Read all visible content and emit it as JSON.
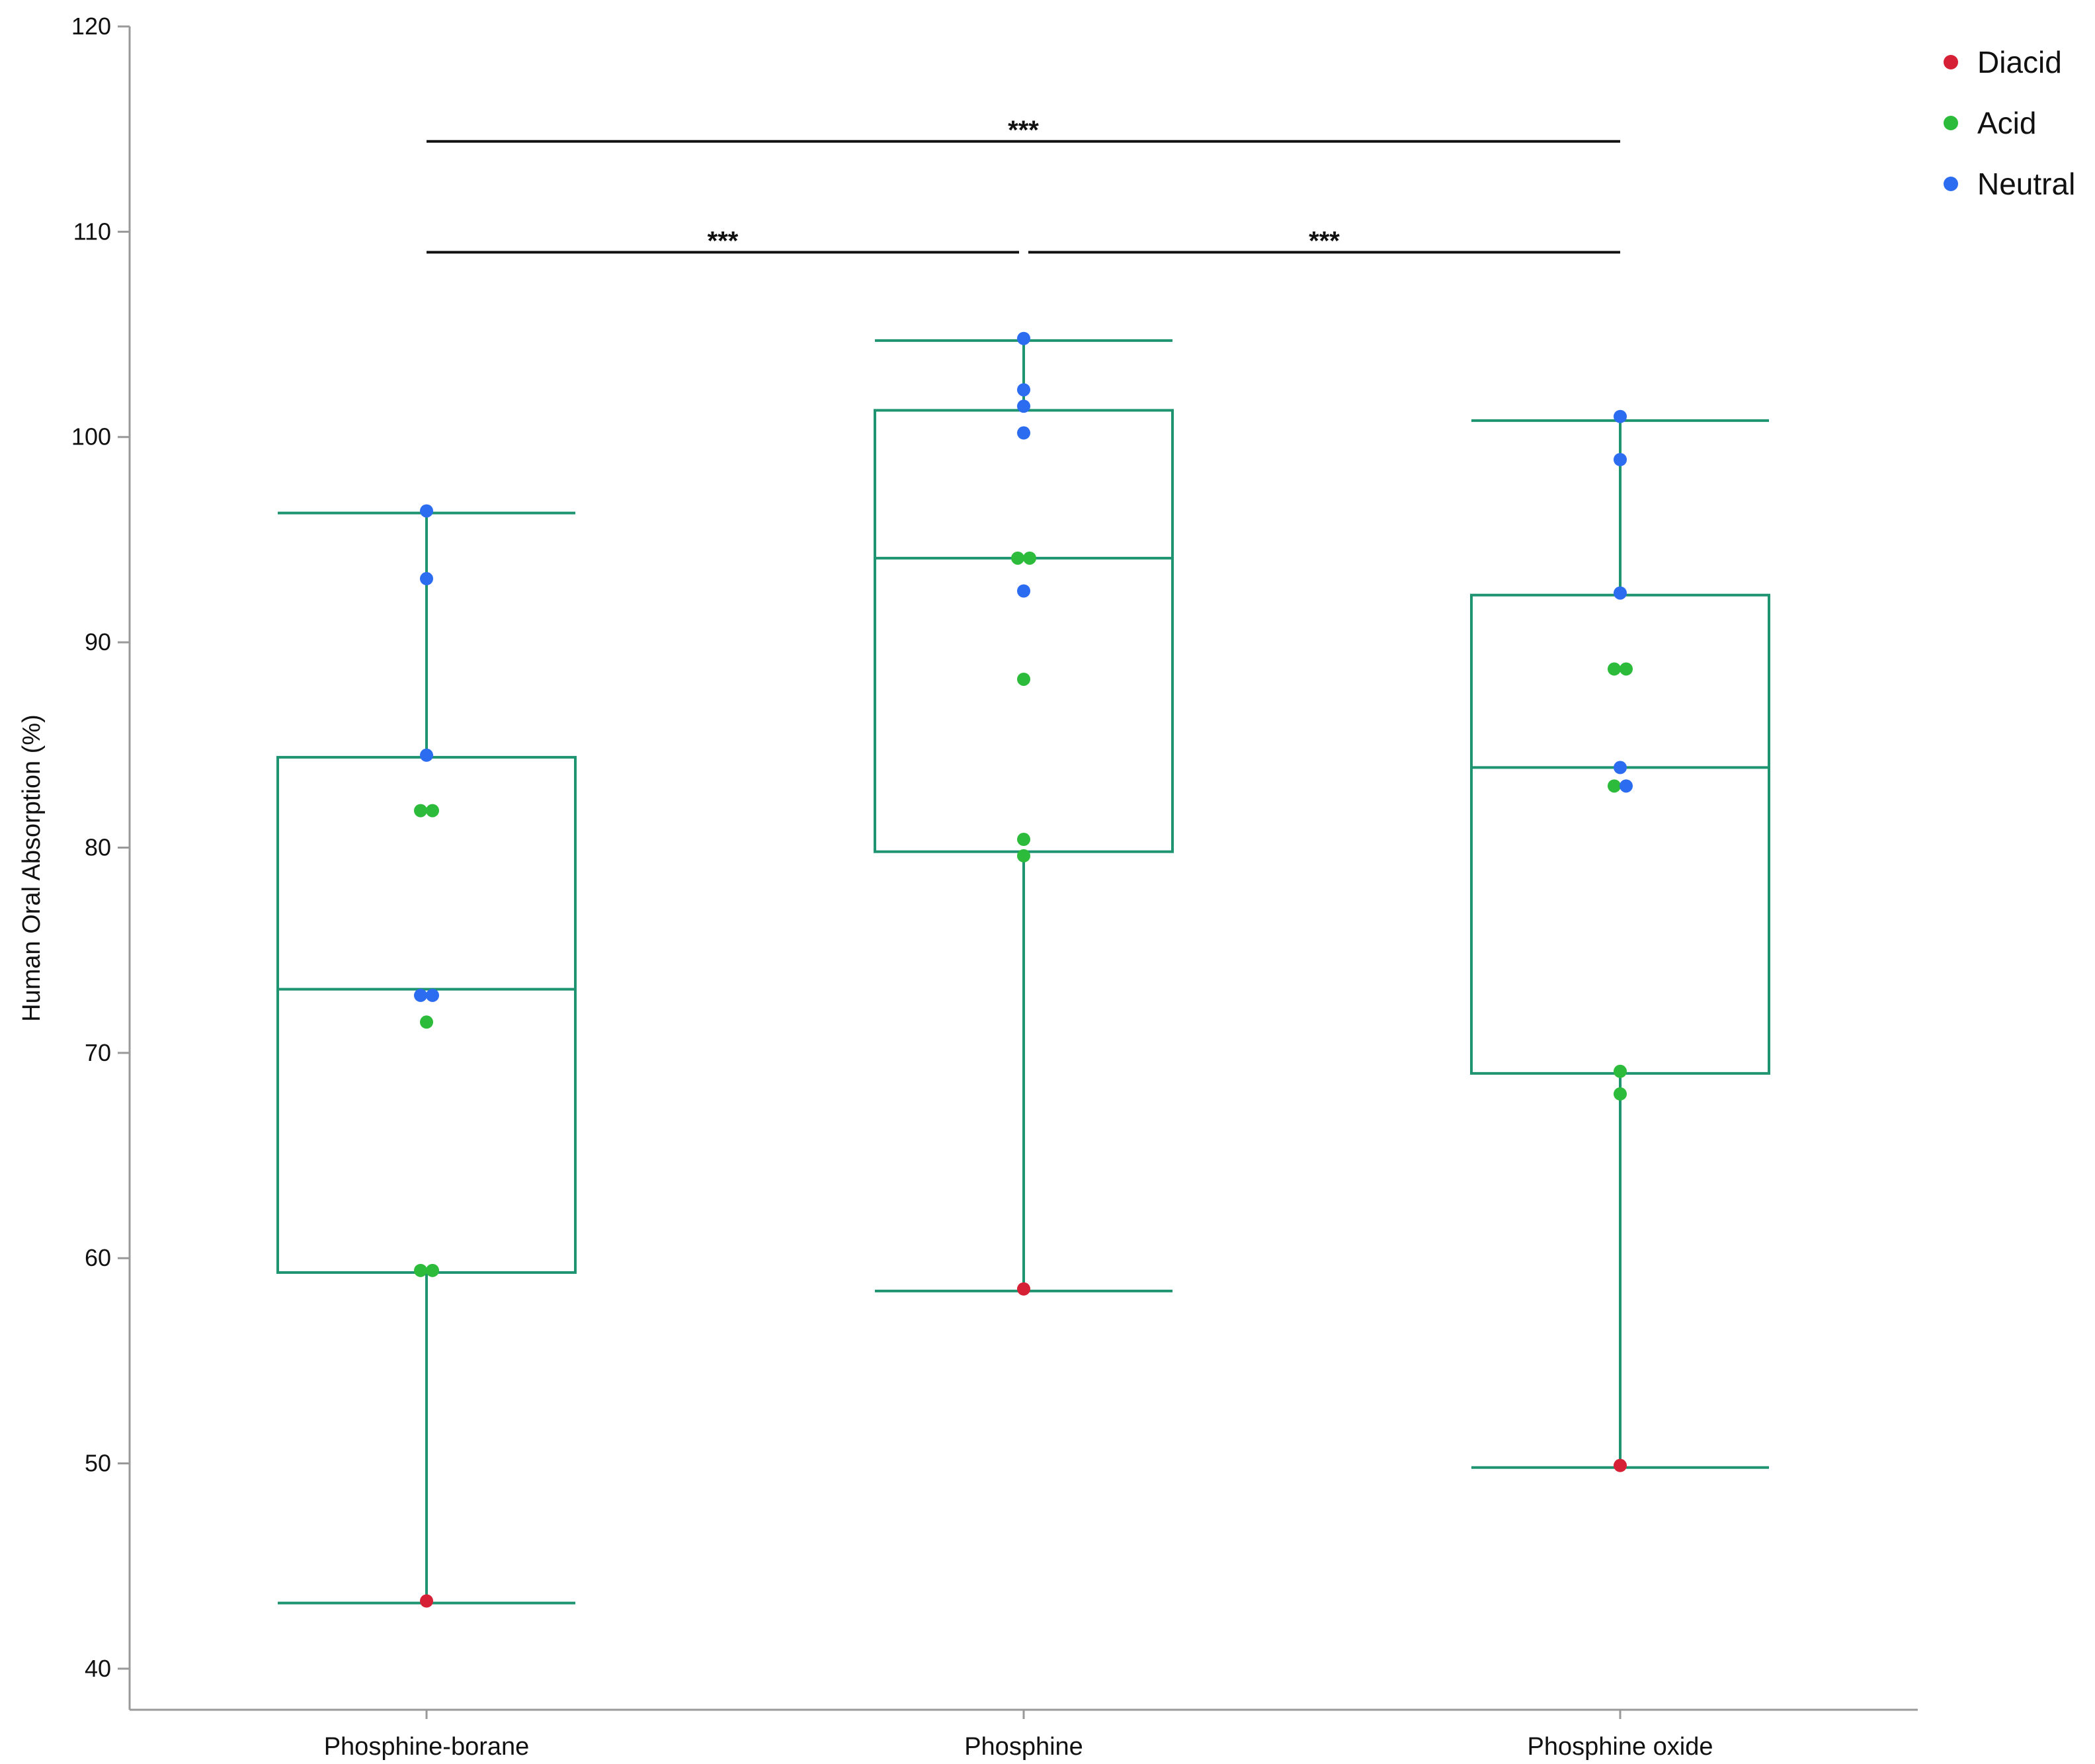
{
  "chart_data": {
    "type": "box",
    "ylabel": "Human Oral Absorption (%)",
    "xlabel": "",
    "ylim": [
      38,
      120
    ],
    "yticks": [
      40,
      50,
      60,
      70,
      80,
      90,
      100,
      110,
      120
    ],
    "categories": [
      "Phosphine-borane",
      "Phosphine",
      "Phosphine oxide"
    ],
    "legend": {
      "position": "top-right",
      "entries": [
        {
          "name": "Diacid",
          "color": "#d62035"
        },
        {
          "name": "Acid",
          "color": "#2dbb3c"
        },
        {
          "name": "Neutral",
          "color": "#2c6cf0"
        }
      ]
    },
    "box_color": "#1e9470",
    "boxes": [
      {
        "category": "Phosphine-borane",
        "whisker_low": 43.2,
        "q1": 59.3,
        "median": 73.1,
        "q3": 84.4,
        "whisker_high": 96.3
      },
      {
        "category": "Phosphine",
        "whisker_low": 58.4,
        "q1": 79.8,
        "median": 94.1,
        "q3": 101.3,
        "whisker_high": 104.7
      },
      {
        "category": "Phosphine oxide",
        "whisker_low": 49.8,
        "q1": 69.0,
        "median": 83.9,
        "q3": 92.3,
        "whisker_high": 100.8
      }
    ],
    "points": [
      {
        "category": "Phosphine-borane",
        "group": "Diacid",
        "y": 43.3,
        "jitter": 0
      },
      {
        "category": "Phosphine-borane",
        "group": "Acid",
        "y": 59.4,
        "jitter": -1
      },
      {
        "category": "Phosphine-borane",
        "group": "Acid",
        "y": 59.4,
        "jitter": 1
      },
      {
        "category": "Phosphine-borane",
        "group": "Acid",
        "y": 71.5,
        "jitter": 0
      },
      {
        "category": "Phosphine-borane",
        "group": "Neutral",
        "y": 72.8,
        "jitter": -1
      },
      {
        "category": "Phosphine-borane",
        "group": "Neutral",
        "y": 72.8,
        "jitter": 1
      },
      {
        "category": "Phosphine-borane",
        "group": "Acid",
        "y": 81.8,
        "jitter": -1
      },
      {
        "category": "Phosphine-borane",
        "group": "Acid",
        "y": 81.8,
        "jitter": 1
      },
      {
        "category": "Phosphine-borane",
        "group": "Neutral",
        "y": 84.5,
        "jitter": 0
      },
      {
        "category": "Phosphine-borane",
        "group": "Neutral",
        "y": 93.1,
        "jitter": 0
      },
      {
        "category": "Phosphine-borane",
        "group": "Neutral",
        "y": 96.4,
        "jitter": 0
      },
      {
        "category": "Phosphine",
        "group": "Diacid",
        "y": 58.5,
        "jitter": 0
      },
      {
        "category": "Phosphine",
        "group": "Acid",
        "y": 79.6,
        "jitter": 0
      },
      {
        "category": "Phosphine",
        "group": "Acid",
        "y": 80.4,
        "jitter": 0
      },
      {
        "category": "Phosphine",
        "group": "Acid",
        "y": 88.2,
        "jitter": 0
      },
      {
        "category": "Phosphine",
        "group": "Neutral",
        "y": 92.5,
        "jitter": 0
      },
      {
        "category": "Phosphine",
        "group": "Acid",
        "y": 94.1,
        "jitter": -1
      },
      {
        "category": "Phosphine",
        "group": "Acid",
        "y": 94.1,
        "jitter": 1
      },
      {
        "category": "Phosphine",
        "group": "Neutral",
        "y": 100.2,
        "jitter": 0
      },
      {
        "category": "Phosphine",
        "group": "Neutral",
        "y": 101.5,
        "jitter": 0
      },
      {
        "category": "Phosphine",
        "group": "Neutral",
        "y": 102.3,
        "jitter": 0
      },
      {
        "category": "Phosphine",
        "group": "Neutral",
        "y": 104.8,
        "jitter": 0
      },
      {
        "category": "Phosphine oxide",
        "group": "Diacid",
        "y": 49.9,
        "jitter": 0
      },
      {
        "category": "Phosphine oxide",
        "group": "Acid",
        "y": 68.0,
        "jitter": 0
      },
      {
        "category": "Phosphine oxide",
        "group": "Acid",
        "y": 69.1,
        "jitter": 0
      },
      {
        "category": "Phosphine oxide",
        "group": "Acid",
        "y": 83.0,
        "jitter": -1
      },
      {
        "category": "Phosphine oxide",
        "group": "Neutral",
        "y": 83.0,
        "jitter": 1
      },
      {
        "category": "Phosphine oxide",
        "group": "Neutral",
        "y": 83.9,
        "jitter": 0
      },
      {
        "category": "Phosphine oxide",
        "group": "Acid",
        "y": 88.7,
        "jitter": -1
      },
      {
        "category": "Phosphine oxide",
        "group": "Acid",
        "y": 88.7,
        "jitter": 1
      },
      {
        "category": "Phosphine oxide",
        "group": "Neutral",
        "y": 92.4,
        "jitter": 0
      },
      {
        "category": "Phosphine oxide",
        "group": "Neutral",
        "y": 98.9,
        "jitter": 0
      },
      {
        "category": "Phosphine oxide",
        "group": "Neutral",
        "y": 101.0,
        "jitter": 0
      }
    ],
    "significance": [
      {
        "from": "Phosphine-borane",
        "to": "Phosphine",
        "y": 109,
        "label": "***"
      },
      {
        "from": "Phosphine",
        "to": "Phosphine oxide",
        "y": 109,
        "label": "***"
      },
      {
        "from": "Phosphine-borane",
        "to": "Phosphine oxide",
        "y": 114.4,
        "label": "***"
      }
    ]
  }
}
